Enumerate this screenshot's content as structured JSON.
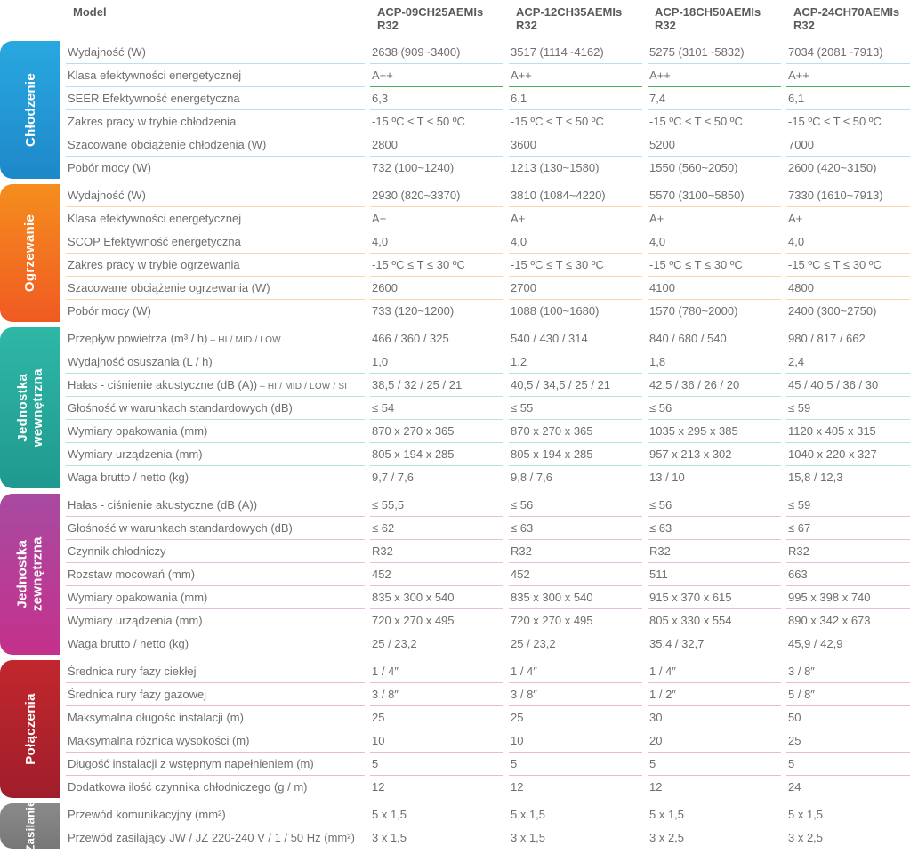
{
  "header": {
    "model_label": "Model",
    "models": [
      "ACP-09CH25AEMIs R32",
      "ACP-12CH35AEMIs R32",
      "ACP-18CH50AEMIs R32",
      "ACP-24CH70AEMIs R32"
    ]
  },
  "sections": [
    {
      "id": "chlodzenie",
      "title": "Chłodzenie",
      "tab_gradient": [
        "#29a8e0",
        "#1e88c9"
      ],
      "row_border": "#b7dff2",
      "rows": [
        {
          "label": "Wydajność (W)",
          "vals": [
            "2638 (909~3400)",
            "3517 (1114~4162)",
            "5275 (3101~5832)",
            "7034 (2081~7913)"
          ]
        },
        {
          "label": "Klasa efektywności energetycznej",
          "vals": [
            "A++",
            "A++",
            "A++",
            "A++"
          ],
          "green": true
        },
        {
          "label": "SEER Efektywność energetyczna",
          "vals": [
            "6,3",
            "6,1",
            "7,4",
            "6,1"
          ]
        },
        {
          "label": "Zakres pracy w trybie chłodzenia",
          "vals": [
            "-15 ºC ≤ T ≤ 50 ºC",
            "-15 ºC ≤ T ≤ 50 ºC",
            "-15 ºC ≤ T ≤ 50 ºC",
            "-15 ºC ≤ T ≤ 50 ºC"
          ]
        },
        {
          "label": "Szacowane obciążenie chłodzenia (W)",
          "vals": [
            "2800",
            "3600",
            "5200",
            "7000"
          ]
        },
        {
          "label": "Pobór mocy (W)",
          "vals": [
            "732 (100~1240)",
            "1213 (130~1580)",
            "1550 (560~2050)",
            "2600 (420~3150)"
          ]
        }
      ]
    },
    {
      "id": "ogrzewanie",
      "title": "Ogrzewanie",
      "tab_gradient": [
        "#f58e1e",
        "#f05a22"
      ],
      "row_border": "#fbd5b0",
      "rows": [
        {
          "label": "Wydajność (W)",
          "vals": [
            "2930 (820~3370)",
            "3810 (1084~4220)",
            "5570 (3100~5850)",
            "7330 (1610~7913)"
          ]
        },
        {
          "label": "Klasa efektywności energetycznej",
          "vals": [
            "A+",
            "A+",
            "A+",
            "A+"
          ],
          "green": true
        },
        {
          "label": "SCOP Efektywność energetyczna",
          "vals": [
            "4,0",
            "4,0",
            "4,0",
            "4,0"
          ]
        },
        {
          "label": "Zakres pracy w trybie ogrzewania",
          "vals": [
            "-15 ºC ≤ T ≤ 30 ºC",
            "-15 ºC ≤ T ≤ 30 ºC",
            "-15 ºC ≤ T ≤ 30 ºC",
            "-15 ºC ≤ T ≤ 30 ºC"
          ]
        },
        {
          "label": "Szacowane obciążenie ogrzewania (W)",
          "vals": [
            "2600",
            "2700",
            "4100",
            "4800"
          ]
        },
        {
          "label": "Pobór mocy (W)",
          "vals": [
            "733 (120~1200)",
            "1088 (100~1680)",
            "1570 (780~2000)",
            "2400 (300~2750)"
          ]
        }
      ]
    },
    {
      "id": "jednostka-wew",
      "title": "Jednostka\nwewnętrzna",
      "tab_gradient": [
        "#2fb7a6",
        "#1f998f"
      ],
      "row_border": "#b3e3dd",
      "rows": [
        {
          "label": "Przepływ powietrza (m³ / h)",
          "sublabel": " – HI / MID / LOW",
          "vals": [
            "466 / 360 / 325",
            "540 / 430 / 314",
            "840 / 680 / 540",
            "980 / 817 / 662"
          ]
        },
        {
          "label": "Wydajność osuszania (L / h)",
          "vals": [
            "1,0",
            "1,2",
            "1,8",
            "2,4"
          ]
        },
        {
          "label": "Hałas - ciśnienie akustyczne (dB (A))",
          "sublabel": " – HI / MID / LOW / SI",
          "vals": [
            "38,5 / 32 / 25 / 21",
            "40,5 / 34,5 / 25 / 21",
            "42,5 / 36 / 26 / 20",
            "45 / 40,5 / 36 / 30"
          ]
        },
        {
          "label": "Głośność w warunkach standardowych (dB)",
          "vals": [
            "≤ 54",
            "≤ 55",
            "≤ 56",
            "≤ 59"
          ]
        },
        {
          "label": "Wymiary opakowania (mm)",
          "vals": [
            "870 x 270 x 365",
            "870 x 270 x 365",
            "1035 x 295 x 385",
            "1120 x 405 x 315"
          ]
        },
        {
          "label": "Wymiary urządzenia (mm)",
          "vals": [
            "805 x 194 x 285",
            "805 x 194 x 285",
            "957 x 213 x 302",
            "1040 x 220 x 327"
          ]
        },
        {
          "label": "Waga brutto / netto (kg)",
          "vals": [
            "9,7 / 7,6",
            "9,8 / 7,6",
            "13 / 10",
            "15,8 / 12,3"
          ]
        }
      ]
    },
    {
      "id": "jednostka-zew",
      "title": "Jednostka\nzewnętrzna",
      "tab_gradient": [
        "#a84aa1",
        "#c4318b"
      ],
      "row_border": "#e4c0de",
      "rows": [
        {
          "label": "Hałas - ciśnienie akustyczne (dB (A))",
          "vals": [
            "≤ 55,5",
            "≤ 56",
            "≤ 56",
            "≤ 59"
          ]
        },
        {
          "label": "Głośność w warunkach standardowych (dB)",
          "vals": [
            "≤ 62",
            "≤ 63",
            "≤ 63",
            "≤ 67"
          ]
        },
        {
          "label": "Czynnik chłodniczy",
          "vals": [
            "R32",
            "R32",
            "R32",
            "R32"
          ]
        },
        {
          "label": "Rozstaw mocowań (mm)",
          "vals": [
            "452",
            "452",
            "511",
            "663"
          ]
        },
        {
          "label": "Wymiary opakowania (mm)",
          "vals": [
            "835 x 300 x 540",
            "835 x 300 x 540",
            "915 x 370 x 615",
            "995 x 398 x 740"
          ]
        },
        {
          "label": "Wymiary urządzenia (mm)",
          "vals": [
            "720 x 270 x 495",
            "720 x 270 x 495",
            "805 x 330 x 554",
            "890 x 342 x 673"
          ]
        },
        {
          "label": "Waga brutto / netto (kg)",
          "vals": [
            "25 / 23,2",
            "25 / 23,2",
            "35,4 / 32,7",
            "45,9 / 42,9"
          ]
        }
      ]
    },
    {
      "id": "polaczenia",
      "title": "Połączenia",
      "tab_gradient": [
        "#c1272d",
        "#a01e2b"
      ],
      "row_border": "#ecbdbf",
      "rows": [
        {
          "label": "Średnica rury fazy ciekłej",
          "vals": [
            "1 / 4″",
            "1 / 4″",
            "1 / 4″",
            "3 / 8″"
          ]
        },
        {
          "label": "Średnica rury fazy gazowej",
          "vals": [
            "3 / 8″",
            "3 / 8″",
            "1 / 2″",
            "5 / 8″"
          ]
        },
        {
          "label": "Maksymalna długość instalacji (m)",
          "vals": [
            "25",
            "25",
            "30",
            "50"
          ]
        },
        {
          "label": "Maksymalna różnica wysokości (m)",
          "vals": [
            "10",
            "10",
            "20",
            "25"
          ]
        },
        {
          "label": "Długość instalacji z wstępnym napełnieniem (m)",
          "vals": [
            "5",
            "5",
            "5",
            "5"
          ]
        },
        {
          "label": "Dodatkowa ilość czynnika chłodniczego (g / m)",
          "vals": [
            "12",
            "12",
            "12",
            "24"
          ]
        }
      ]
    },
    {
      "id": "zasilanie",
      "title": "Zasilanie",
      "tab_gradient": [
        "#8a8a8a",
        "#777777"
      ],
      "row_border": "#d6d6d6",
      "small_tab": true,
      "rows": [
        {
          "label": "Przewód komunikacyjny (mm²)",
          "vals": [
            "5 x 1,5",
            "5 x 1,5",
            "5 x 1,5",
            "5 x 1,5"
          ]
        },
        {
          "label": "Przewód zasilający JW / JZ 220-240 V / 1 / 50 Hz (mm²)",
          "vals": [
            "3 x 1,5",
            "3 x 1,5",
            "3 x 2,5",
            "3 x 2,5"
          ]
        }
      ]
    }
  ],
  "green_border": "#4caf50"
}
